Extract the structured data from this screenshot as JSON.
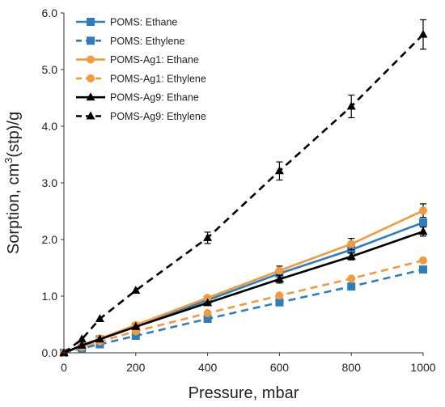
{
  "chart_data": {
    "type": "line",
    "xlabel": "Pressure, mbar",
    "ylabel_parts": [
      "Sorption, cm",
      "3",
      "(stp)/g"
    ],
    "xlim": [
      0,
      1000
    ],
    "ylim": [
      0,
      6.0
    ],
    "xticks": [
      0,
      200,
      400,
      600,
      800,
      1000
    ],
    "yticks": [
      0.0,
      1.0,
      2.0,
      3.0,
      4.0,
      5.0,
      6.0
    ],
    "xtick_labels": [
      "0",
      "200",
      "400",
      "600",
      "800",
      "1000"
    ],
    "ytick_labels": [
      "0.0",
      "1.0",
      "2.0",
      "3.0",
      "4.0",
      "5.0",
      "6.0"
    ],
    "grid": false,
    "legend_position": "top-left",
    "series": [
      {
        "name": "POMS: Ethane",
        "color": "#2e7ebf",
        "dashed": false,
        "marker": "square",
        "points": [
          [
            0,
            0.0
          ],
          [
            50,
            0.12
          ],
          [
            100,
            0.24
          ],
          [
            200,
            0.46
          ],
          [
            400,
            0.93
          ],
          [
            600,
            1.4
          ],
          [
            800,
            1.82
          ],
          [
            1000,
            2.3
          ]
        ],
        "errors": [
          0,
          0,
          0,
          0,
          0,
          0,
          0,
          0
        ]
      },
      {
        "name": "POMS: Ethylene",
        "color": "#2e7ebf",
        "dashed": true,
        "marker": "square",
        "points": [
          [
            0,
            0.0
          ],
          [
            50,
            0.08
          ],
          [
            100,
            0.15
          ],
          [
            200,
            0.3
          ],
          [
            400,
            0.6
          ],
          [
            600,
            0.89
          ],
          [
            800,
            1.17
          ],
          [
            1000,
            1.47
          ]
        ],
        "errors": [
          0,
          0,
          0,
          0,
          0,
          0,
          0,
          0
        ]
      },
      {
        "name": "POMS-Ag1: Ethane",
        "color": "#f39a3d",
        "dashed": false,
        "marker": "circle",
        "points": [
          [
            0,
            0.0
          ],
          [
            50,
            0.13
          ],
          [
            100,
            0.25
          ],
          [
            200,
            0.49
          ],
          [
            400,
            0.97
          ],
          [
            600,
            1.45
          ],
          [
            800,
            1.92
          ],
          [
            1000,
            2.51
          ]
        ],
        "errors": [
          0,
          0,
          0,
          0,
          0,
          0.08,
          0.1,
          0.12
        ]
      },
      {
        "name": "POMS-Ag1: Ethylene",
        "color": "#f39a3d",
        "dashed": true,
        "marker": "circle",
        "points": [
          [
            0,
            0.0
          ],
          [
            50,
            0.1
          ],
          [
            100,
            0.2
          ],
          [
            200,
            0.38
          ],
          [
            400,
            0.7
          ],
          [
            600,
            1.01
          ],
          [
            800,
            1.31
          ],
          [
            1000,
            1.63
          ]
        ],
        "errors": [
          0,
          0,
          0,
          0,
          0,
          0,
          0,
          0
        ]
      },
      {
        "name": "POMS-Ag9: Ethane",
        "color": "#000000",
        "dashed": false,
        "marker": "triangle",
        "points": [
          [
            0,
            0.0
          ],
          [
            50,
            0.13
          ],
          [
            100,
            0.24
          ],
          [
            200,
            0.46
          ],
          [
            400,
            0.88
          ],
          [
            600,
            1.3
          ],
          [
            800,
            1.7
          ],
          [
            1000,
            2.14
          ]
        ],
        "errors": [
          0,
          0,
          0,
          0,
          0,
          0.07,
          0.06,
          0.08
        ]
      },
      {
        "name": "POMS-Ag9: Ethylene",
        "color": "#000000",
        "dashed": true,
        "marker": "triangle",
        "points": [
          [
            0,
            0.0
          ],
          [
            50,
            0.24
          ],
          [
            100,
            0.6
          ],
          [
            200,
            1.1
          ],
          [
            400,
            2.03
          ],
          [
            600,
            3.21
          ],
          [
            800,
            4.35
          ],
          [
            1000,
            5.62
          ]
        ],
        "errors": [
          0,
          0,
          0,
          0,
          0.1,
          0.16,
          0.2,
          0.26
        ]
      }
    ]
  }
}
